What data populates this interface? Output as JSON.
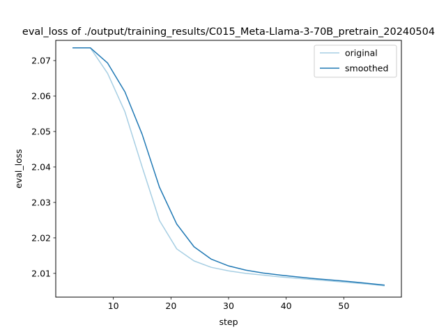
{
  "chart_data": {
    "type": "line",
    "title": "eval_loss of ./output/training_results/C015_Meta-Llama-3-70B_pretrain_20240504",
    "xlabel": "step",
    "ylabel": "eval_loss",
    "xlim": [
      0,
      60
    ],
    "ylim": [
      2.0033,
      2.0757
    ],
    "xticks": [
      10,
      20,
      30,
      40,
      50
    ],
    "yticks": [
      2.01,
      2.02,
      2.03,
      2.04,
      2.05,
      2.06,
      2.07
    ],
    "ytick_labels": [
      "2.01",
      "2.02",
      "2.03",
      "2.04",
      "2.05",
      "2.06",
      "2.07"
    ],
    "grid": false,
    "legend": "upper right",
    "x": [
      3,
      6,
      9,
      12,
      15,
      18,
      21,
      24,
      27,
      30,
      33,
      36,
      39,
      42,
      45,
      48,
      51,
      54,
      57
    ],
    "series": [
      {
        "name": "original",
        "color": "#a6cee3",
        "values": [
          2.0736,
          2.0736,
          2.0664,
          2.0556,
          2.04,
          2.0249,
          2.0169,
          2.0135,
          2.0117,
          2.0107,
          2.01,
          2.0095,
          2.009,
          2.0086,
          2.0082,
          2.0078,
          2.0074,
          2.007,
          2.0065
        ]
      },
      {
        "name": "smoothed",
        "color": "#1f78b4",
        "values": [
          2.0736,
          2.0736,
          2.0693,
          2.0612,
          2.0492,
          2.0343,
          2.0239,
          2.0175,
          2.014,
          2.0121,
          2.0109,
          2.0101,
          2.0095,
          2.009,
          2.0085,
          2.0081,
          2.0077,
          2.0072,
          2.0067
        ]
      }
    ]
  }
}
